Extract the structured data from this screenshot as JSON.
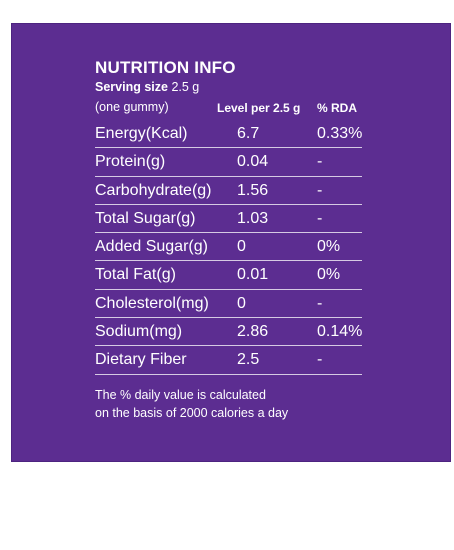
{
  "panel": {
    "title": "NUTRITION INFO",
    "serving_label": "Serving size",
    "serving_value": "2.5 g",
    "serving_note": "(one gummy)",
    "header_level": "Level per 2.5 g",
    "header_rda": "% RDA",
    "accent_color": "#5c2d91",
    "rows": [
      {
        "name": "Energy(Kcal)",
        "level": "6.7",
        "rda": "0.33%"
      },
      {
        "name": "Protein(g)",
        "level": "0.04",
        "rda": "-"
      },
      {
        "name": "Carbohydrate(g)",
        "level": "1.56",
        "rda": "-"
      },
      {
        "name": "Total Sugar(g)",
        "level": "1.03",
        "rda": "-"
      },
      {
        "name": "Added Sugar(g)",
        "level": "0",
        "rda": "0%"
      },
      {
        "name": "Total Fat(g)",
        "level": "0.01",
        "rda": "0%"
      },
      {
        "name": "Cholesterol(mg)",
        "level": "0",
        "rda": "-"
      },
      {
        "name": "Sodium(mg)",
        "level": "2.86",
        "rda": "0.14%"
      },
      {
        "name": "Dietary Fiber",
        "level": "2.5",
        "rda": "-"
      }
    ],
    "footnote_line1": "The % daily value is calculated",
    "footnote_line2": "on the basis of 2000 calories a day"
  }
}
